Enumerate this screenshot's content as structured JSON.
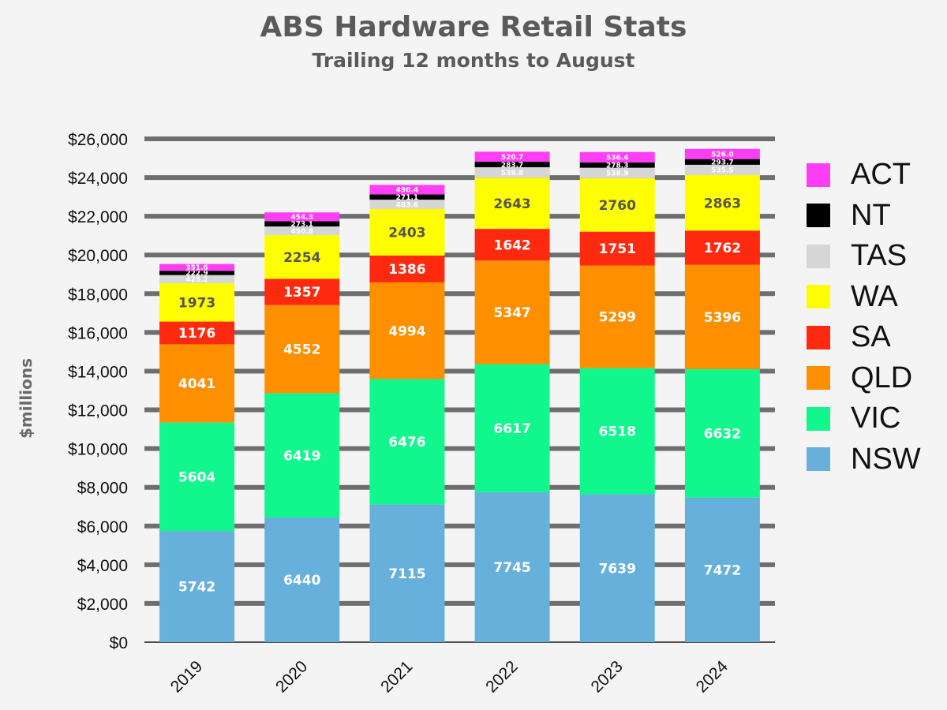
{
  "chart_data": {
    "type": "bar",
    "stacked": true,
    "title": "ABS Hardware Retail Stats",
    "subtitle": "Trailing 12 months to August",
    "ylabel": "$millions",
    "xlabel": "",
    "ylim": [
      0,
      26000
    ],
    "yticks": [
      "$0",
      "$2,000",
      "$4,000",
      "$6,000",
      "$8,000",
      "$10,000",
      "$12,000",
      "$14,000",
      "$16,000",
      "$18,000",
      "$20,000",
      "$22,000",
      "$24,000",
      "$26,000"
    ],
    "grid": true,
    "legend_position": "right",
    "categories": [
      "2019",
      "2020",
      "2021",
      "2022",
      "2023",
      "2024"
    ],
    "series": [
      {
        "name": "NSW",
        "color": "#67b0dc",
        "label_color": "#ffffff",
        "values": [
          5742,
          6440,
          7115,
          7745,
          7639,
          7472
        ]
      },
      {
        "name": "VIC",
        "color": "#11f78e",
        "label_color": "#ffffff",
        "values": [
          5604,
          6419,
          6476,
          6617,
          6518,
          6632
        ]
      },
      {
        "name": "QLD",
        "color": "#fd8f00",
        "label_color": "#ffffff",
        "values": [
          4041,
          4552,
          4994,
          5347,
          5299,
          5396
        ]
      },
      {
        "name": "SA",
        "color": "#fe2a10",
        "label_color": "#ffffff",
        "values": [
          1176,
          1357,
          1386,
          1642,
          1751,
          1762
        ]
      },
      {
        "name": "WA",
        "color": "#fefe00",
        "label_color": "#555555",
        "values": [
          1973,
          2254,
          2403,
          2643,
          2760,
          2863
        ]
      },
      {
        "name": "TAS",
        "color": "#d6d6d6",
        "label_color": "#ffffff",
        "values": [
          425.2,
          450.8,
          483.6,
          538.8,
          538.9,
          535.5
        ]
      },
      {
        "name": "NT",
        "color": "#000000",
        "label_color": "#ffffff",
        "values": [
          222.9,
          273.1,
          271.1,
          283.7,
          278.3,
          293.7
        ]
      },
      {
        "name": "ACT",
        "color": "#fe3ef5",
        "label_color": "#ffffff",
        "values": [
          351.6,
          454.3,
          490.4,
          520.7,
          536.4,
          526.0
        ]
      }
    ]
  }
}
